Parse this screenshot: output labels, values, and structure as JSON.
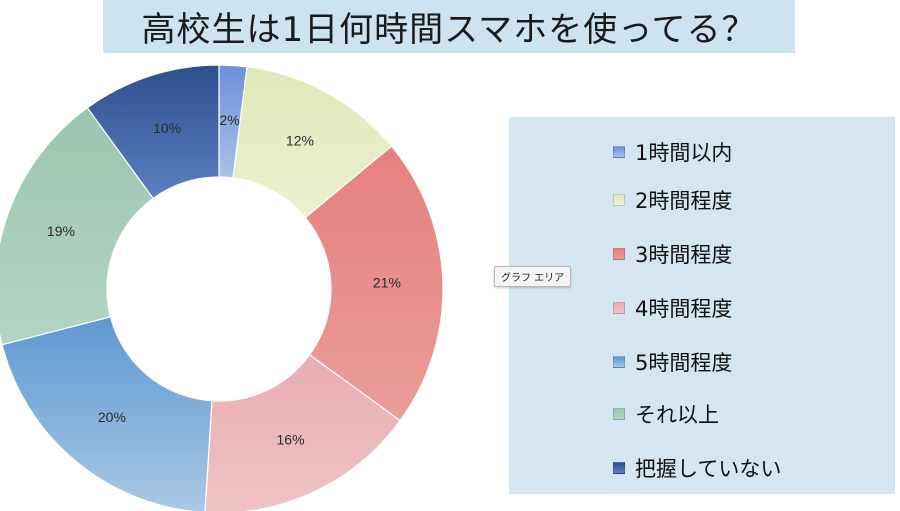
{
  "title": "高校生は1日何時間スマホを使ってる？",
  "tooltip": "グラフ エリア",
  "chart_data": {
    "type": "pie",
    "title": "高校生は1日何時間スマホを使ってる？",
    "categories": [
      "1時間以内",
      "2時間程度",
      "3時間程度",
      "4時間程度",
      "5時間程度",
      "それ以上",
      "把握していない"
    ],
    "values": [
      2,
      12,
      21,
      16,
      20,
      19,
      10
    ],
    "data_labels": [
      "2%",
      "12%",
      "21%",
      "16%",
      "20%",
      "19%",
      "10%"
    ],
    "unit": "%",
    "donut": true,
    "legend_position": "right",
    "colors": [
      [
        "#6d8fd6",
        "#a9c2ea"
      ],
      [
        "#dfe8b8",
        "#edf1cf"
      ],
      [
        "#e5817f",
        "#eb9c98"
      ],
      [
        "#e8adb2",
        "#efc3c6"
      ],
      [
        "#5d98d0",
        "#aac9e6"
      ],
      [
        "#9bc6b0",
        "#b3d4c4"
      ],
      [
        "#2e4f8e",
        "#5b7fc0"
      ]
    ]
  }
}
